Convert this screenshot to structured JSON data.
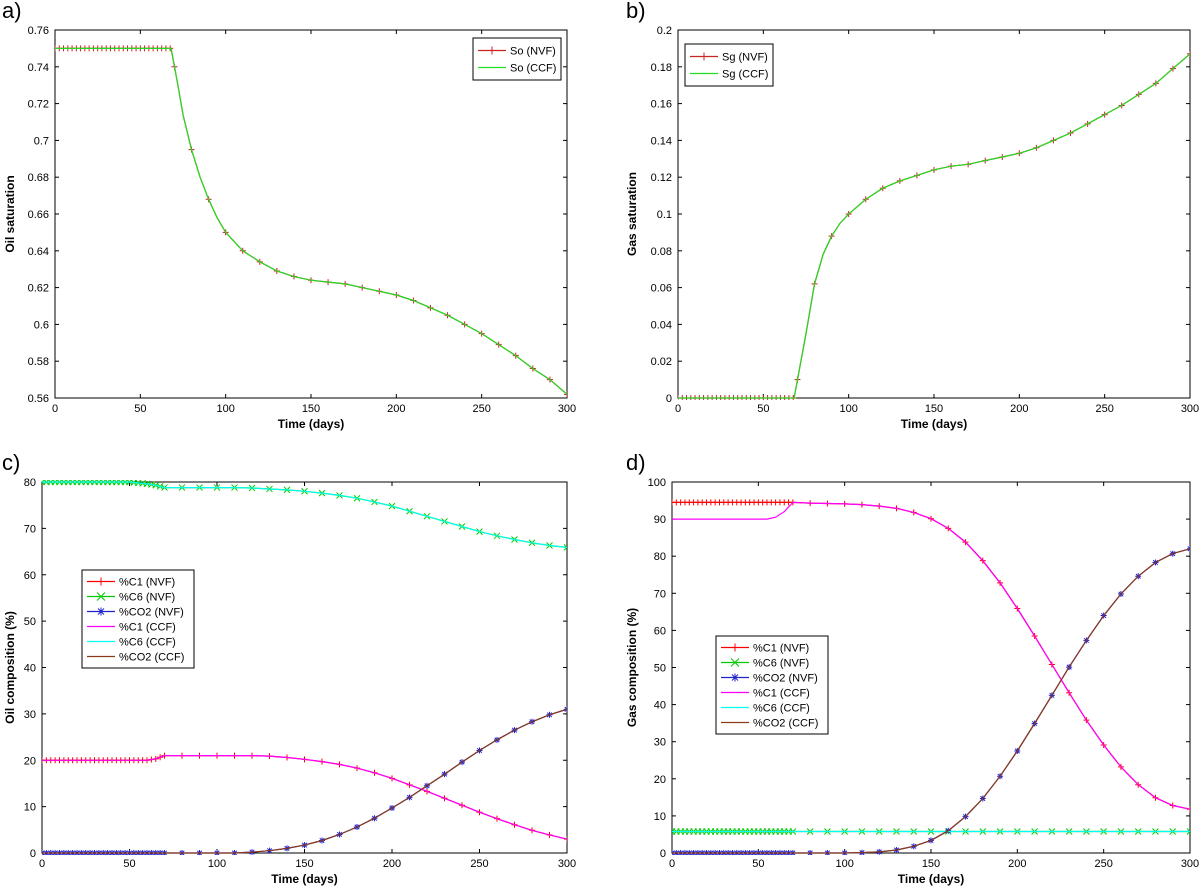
{
  "figure": {
    "panels": [
      "a)",
      "b)",
      "c)",
      "d)"
    ]
  },
  "colors": {
    "nvf_c1": "#ff0000",
    "nvf_c6": "#00cc00",
    "nvf_co2": "#2222cc",
    "ccf_c1": "#ff00ff",
    "ccf_c6": "#00ffee",
    "ccf_co2": "#8b3a1a",
    "so_nvf": "#cc2222",
    "so_ccf": "#22dd22"
  },
  "chart_data": [
    {
      "id": "a",
      "type": "line",
      "panel_label": "a)",
      "xlabel": "Time (days)",
      "ylabel": "Oil saturation",
      "xlim": [
        0,
        300
      ],
      "ylim": [
        0.56,
        0.76
      ],
      "xticks": [
        "0",
        "50",
        "100",
        "150",
        "200",
        "250",
        "300"
      ],
      "yticks": [
        "0.56",
        "0.58",
        "0.6",
        "0.62",
        "0.64",
        "0.66",
        "0.68",
        "0.7",
        "0.72",
        "0.74",
        "0.76"
      ],
      "legend_position": "top-right",
      "x": [
        0,
        10,
        20,
        30,
        40,
        50,
        60,
        68,
        70,
        72,
        75,
        80,
        85,
        90,
        95,
        100,
        110,
        120,
        130,
        140,
        150,
        160,
        170,
        180,
        190,
        200,
        210,
        220,
        230,
        240,
        250,
        260,
        270,
        280,
        290,
        300
      ],
      "series": [
        {
          "name": "So (NVF)",
          "marker": "plus",
          "color_key": "so_nvf",
          "values": [
            0.75,
            0.75,
            0.75,
            0.75,
            0.75,
            0.75,
            0.75,
            0.75,
            0.74,
            0.73,
            0.714,
            0.695,
            0.68,
            0.668,
            0.658,
            0.65,
            0.64,
            0.634,
            0.629,
            0.626,
            0.624,
            0.623,
            0.622,
            0.62,
            0.618,
            0.616,
            0.613,
            0.609,
            0.605,
            0.6,
            0.595,
            0.589,
            0.583,
            0.576,
            0.57,
            0.562
          ]
        },
        {
          "name": "So (CCF)",
          "marker": "none",
          "color_key": "so_ccf",
          "values": [
            0.75,
            0.75,
            0.75,
            0.75,
            0.75,
            0.75,
            0.75,
            0.75,
            0.74,
            0.73,
            0.714,
            0.695,
            0.68,
            0.668,
            0.658,
            0.65,
            0.64,
            0.634,
            0.629,
            0.626,
            0.624,
            0.623,
            0.622,
            0.62,
            0.618,
            0.616,
            0.613,
            0.609,
            0.605,
            0.6,
            0.595,
            0.589,
            0.583,
            0.576,
            0.57,
            0.562
          ]
        }
      ]
    },
    {
      "id": "b",
      "type": "line",
      "panel_label": "b)",
      "xlabel": "Time (days)",
      "ylabel": "Gas saturation",
      "xlim": [
        0,
        300
      ],
      "ylim": [
        0,
        0.2
      ],
      "xticks": [
        "0",
        "50",
        "100",
        "150",
        "200",
        "250",
        "300"
      ],
      "yticks": [
        "0",
        "0.02",
        "0.04",
        "0.06",
        "0.08",
        "0.1",
        "0.12",
        "0.14",
        "0.16",
        "0.18",
        "0.2"
      ],
      "legend_position": "top-left",
      "x": [
        0,
        10,
        20,
        30,
        40,
        50,
        60,
        68,
        70,
        72,
        75,
        80,
        85,
        90,
        95,
        100,
        110,
        120,
        130,
        140,
        150,
        160,
        170,
        180,
        190,
        200,
        210,
        220,
        230,
        240,
        250,
        260,
        270,
        280,
        290,
        300
      ],
      "series": [
        {
          "name": "Sg (NVF)",
          "marker": "plus",
          "color_key": "so_nvf",
          "values": [
            0,
            0,
            0,
            0,
            0,
            0,
            0,
            0,
            0.01,
            0.02,
            0.035,
            0.062,
            0.078,
            0.088,
            0.095,
            0.1,
            0.108,
            0.114,
            0.118,
            0.121,
            0.124,
            0.126,
            0.127,
            0.129,
            0.131,
            0.133,
            0.136,
            0.14,
            0.144,
            0.149,
            0.154,
            0.159,
            0.165,
            0.171,
            0.179,
            0.187
          ]
        },
        {
          "name": "Sg (CCF)",
          "marker": "none",
          "color_key": "so_ccf",
          "values": [
            0,
            0,
            0,
            0,
            0,
            0,
            0,
            0,
            0.01,
            0.02,
            0.035,
            0.062,
            0.078,
            0.088,
            0.095,
            0.1,
            0.108,
            0.114,
            0.118,
            0.121,
            0.124,
            0.126,
            0.127,
            0.129,
            0.131,
            0.133,
            0.136,
            0.14,
            0.144,
            0.149,
            0.154,
            0.159,
            0.165,
            0.171,
            0.179,
            0.187
          ]
        }
      ]
    },
    {
      "id": "c",
      "type": "line",
      "panel_label": "c)",
      "xlabel": "Time (days)",
      "ylabel": "Oil composition (%)",
      "xlim": [
        0,
        300
      ],
      "ylim": [
        0,
        80
      ],
      "xticks": [
        "0",
        "50",
        "100",
        "150",
        "200",
        "250",
        "300"
      ],
      "yticks": [
        "0",
        "10",
        "20",
        "30",
        "40",
        "50",
        "60",
        "70",
        "80"
      ],
      "legend_position": "center-left",
      "x": [
        0,
        10,
        20,
        30,
        40,
        50,
        60,
        65,
        70,
        80,
        90,
        100,
        110,
        120,
        130,
        140,
        150,
        160,
        170,
        180,
        190,
        200,
        210,
        220,
        230,
        240,
        250,
        260,
        270,
        280,
        290,
        300
      ],
      "series": [
        {
          "name": "%C1 (NVF)",
          "marker": "plus",
          "color_key": "nvf_c1",
          "values": [
            20,
            20,
            20,
            20,
            20,
            20,
            20,
            20.3,
            21,
            21,
            21,
            21,
            21,
            21,
            20.9,
            20.6,
            20.2,
            19.7,
            19.1,
            18.3,
            17.3,
            16.1,
            14.7,
            13.3,
            11.8,
            10.3,
            8.8,
            7.4,
            6.1,
            4.9,
            3.9,
            3
          ]
        },
        {
          "name": "%C6 (NVF)",
          "marker": "x",
          "color_key": "nvf_c6",
          "values": [
            80,
            80,
            80,
            80,
            80,
            80,
            79.6,
            79.3,
            78.8,
            78.8,
            78.8,
            78.8,
            78.8,
            78.7,
            78.5,
            78.3,
            78,
            77.6,
            77.1,
            76.5,
            75.7,
            74.8,
            73.7,
            72.6,
            71.5,
            70.4,
            69.3,
            68.4,
            67.6,
            66.9,
            66.3,
            65.9
          ]
        },
        {
          "name": "%CO2 (NVF)",
          "marker": "star",
          "color_key": "nvf_co2",
          "values": [
            0,
            0,
            0,
            0,
            0,
            0,
            0,
            0,
            0,
            0,
            0,
            0,
            0,
            0.2,
            0.5,
            1,
            1.7,
            2.7,
            4,
            5.6,
            7.5,
            9.7,
            12,
            14.5,
            17,
            19.6,
            22.1,
            24.4,
            26.5,
            28.3,
            29.8,
            31
          ]
        },
        {
          "name": "%C1 (CCF)",
          "marker": "none",
          "color_key": "ccf_c1",
          "values": [
            20,
            20,
            20,
            20,
            20,
            20,
            20,
            20.3,
            21,
            21,
            21,
            21,
            21,
            21,
            20.9,
            20.6,
            20.2,
            19.7,
            19.1,
            18.3,
            17.3,
            16.1,
            14.7,
            13.3,
            11.8,
            10.3,
            8.8,
            7.4,
            6.1,
            4.9,
            3.9,
            3
          ]
        },
        {
          "name": "%C6 (CCF)",
          "marker": "none",
          "color_key": "ccf_c6",
          "values": [
            80,
            80,
            80,
            80,
            80,
            80,
            79.6,
            79.3,
            78.8,
            78.8,
            78.8,
            78.8,
            78.8,
            78.7,
            78.5,
            78.3,
            78,
            77.6,
            77.1,
            76.5,
            75.7,
            74.8,
            73.7,
            72.6,
            71.5,
            70.4,
            69.3,
            68.4,
            67.6,
            66.9,
            66.3,
            65.9
          ]
        },
        {
          "name": "%CO2 (CCF)",
          "marker": "none",
          "color_key": "ccf_co2",
          "values": [
            0,
            0,
            0,
            0,
            0,
            0,
            0,
            0,
            0,
            0,
            0,
            0,
            0,
            0.2,
            0.5,
            1,
            1.7,
            2.7,
            4,
            5.6,
            7.5,
            9.7,
            12,
            14.5,
            17,
            19.6,
            22.1,
            24.4,
            26.5,
            28.3,
            29.8,
            31
          ]
        }
      ]
    },
    {
      "id": "d",
      "type": "line",
      "panel_label": "d)",
      "xlabel": "Time (days)",
      "ylabel": "Gas composition (%)",
      "xlim": [
        0,
        300
      ],
      "ylim": [
        0,
        100
      ],
      "xticks": [
        "0",
        "50",
        "100",
        "150",
        "200",
        "250",
        "300"
      ],
      "yticks": [
        "0",
        "10",
        "20",
        "30",
        "40",
        "50",
        "60",
        "70",
        "80",
        "90",
        "100"
      ],
      "legend_position": "center-left",
      "x": [
        0,
        10,
        20,
        30,
        40,
        50,
        55,
        60,
        65,
        70,
        80,
        90,
        100,
        110,
        120,
        130,
        140,
        150,
        160,
        170,
        180,
        190,
        200,
        210,
        220,
        230,
        240,
        250,
        260,
        270,
        280,
        290,
        300
      ],
      "series": [
        {
          "name": "%C1 (NVF)",
          "marker": "plus",
          "color_key": "nvf_c1",
          "values": [
            94.5,
            94.5,
            94.5,
            94.5,
            94.5,
            94.5,
            94.5,
            94.5,
            94.5,
            94.5,
            94.3,
            94.2,
            94.1,
            93.9,
            93.5,
            92.9,
            91.8,
            90.1,
            87.5,
            83.8,
            78.8,
            72.8,
            65.9,
            58.5,
            50.8,
            43.2,
            35.8,
            29.1,
            23.2,
            18.4,
            14.9,
            12.8,
            11.8
          ]
        },
        {
          "name": "%C6 (NVF)",
          "marker": "x",
          "color_key": "nvf_c6",
          "values": [
            5.8,
            5.8,
            5.8,
            5.8,
            5.8,
            5.8,
            5.8,
            5.8,
            5.8,
            5.8,
            5.8,
            5.8,
            5.8,
            5.8,
            5.8,
            5.8,
            5.8,
            5.8,
            5.8,
            5.8,
            5.8,
            5.8,
            5.8,
            5.8,
            5.8,
            5.8,
            5.8,
            5.8,
            5.8,
            5.8,
            5.8,
            5.8,
            5.8
          ]
        },
        {
          "name": "%CO2 (NVF)",
          "marker": "star",
          "color_key": "nvf_co2",
          "values": [
            0,
            0,
            0,
            0,
            0,
            0,
            0,
            0,
            0,
            0,
            0,
            0,
            0,
            0.1,
            0.3,
            0.8,
            1.8,
            3.4,
            6,
            9.8,
            14.7,
            20.7,
            27.5,
            34.9,
            42.5,
            50.1,
            57.3,
            64,
            69.8,
            74.6,
            78.3,
            80.7,
            82
          ]
        },
        {
          "name": "%C1 (CCF)",
          "marker": "none",
          "color_key": "ccf_c1",
          "values": [
            90,
            90,
            90,
            90,
            90,
            90,
            90,
            90.5,
            92,
            94.5,
            94.3,
            94.2,
            94.1,
            93.9,
            93.5,
            92.9,
            91.8,
            90.1,
            87.5,
            83.8,
            78.8,
            72.8,
            65.9,
            58.5,
            50.8,
            43.2,
            35.8,
            29.1,
            23.2,
            18.4,
            14.9,
            12.8,
            11.8
          ]
        },
        {
          "name": "%C6 (CCF)",
          "marker": "none",
          "color_key": "ccf_c6",
          "values": [
            5.8,
            5.8,
            5.8,
            5.8,
            5.8,
            5.8,
            5.8,
            5.8,
            5.8,
            5.8,
            5.8,
            5.8,
            5.8,
            5.8,
            5.8,
            5.8,
            5.8,
            5.8,
            5.8,
            5.8,
            5.8,
            5.8,
            5.8,
            5.8,
            5.8,
            5.8,
            5.8,
            5.8,
            5.8,
            5.8,
            5.8,
            5.8,
            5.8
          ]
        },
        {
          "name": "%CO2 (CCF)",
          "marker": "none",
          "color_key": "ccf_co2",
          "values": [
            0,
            0,
            0,
            0,
            0,
            0,
            0,
            0,
            0,
            0,
            0,
            0,
            0,
            0.1,
            0.3,
            0.8,
            1.8,
            3.4,
            6,
            9.8,
            14.7,
            20.7,
            27.5,
            34.9,
            42.5,
            50.1,
            57.3,
            64,
            69.8,
            74.6,
            78.3,
            80.7,
            82
          ]
        }
      ]
    }
  ]
}
